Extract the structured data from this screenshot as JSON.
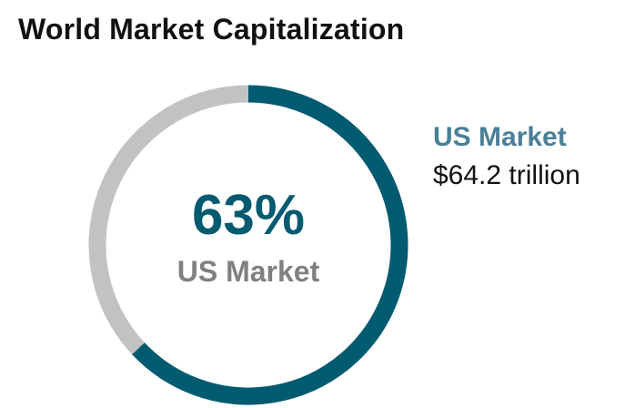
{
  "chart_data": {
    "type": "pie",
    "title": "World Market Capitalization",
    "center": {
      "value": "63%",
      "label": "US Market"
    },
    "slices": [
      {
        "label": "US Market",
        "value": 63,
        "color": "#005A70"
      },
      {
        "label": "",
        "value": 37,
        "color": "#C2C2C2"
      }
    ],
    "legend": {
      "name": "US Market",
      "value": "$64.2 trillion",
      "name_color": "#4A7F97"
    },
    "center_value_color": "#005A70",
    "center_label_color": "#808080"
  }
}
